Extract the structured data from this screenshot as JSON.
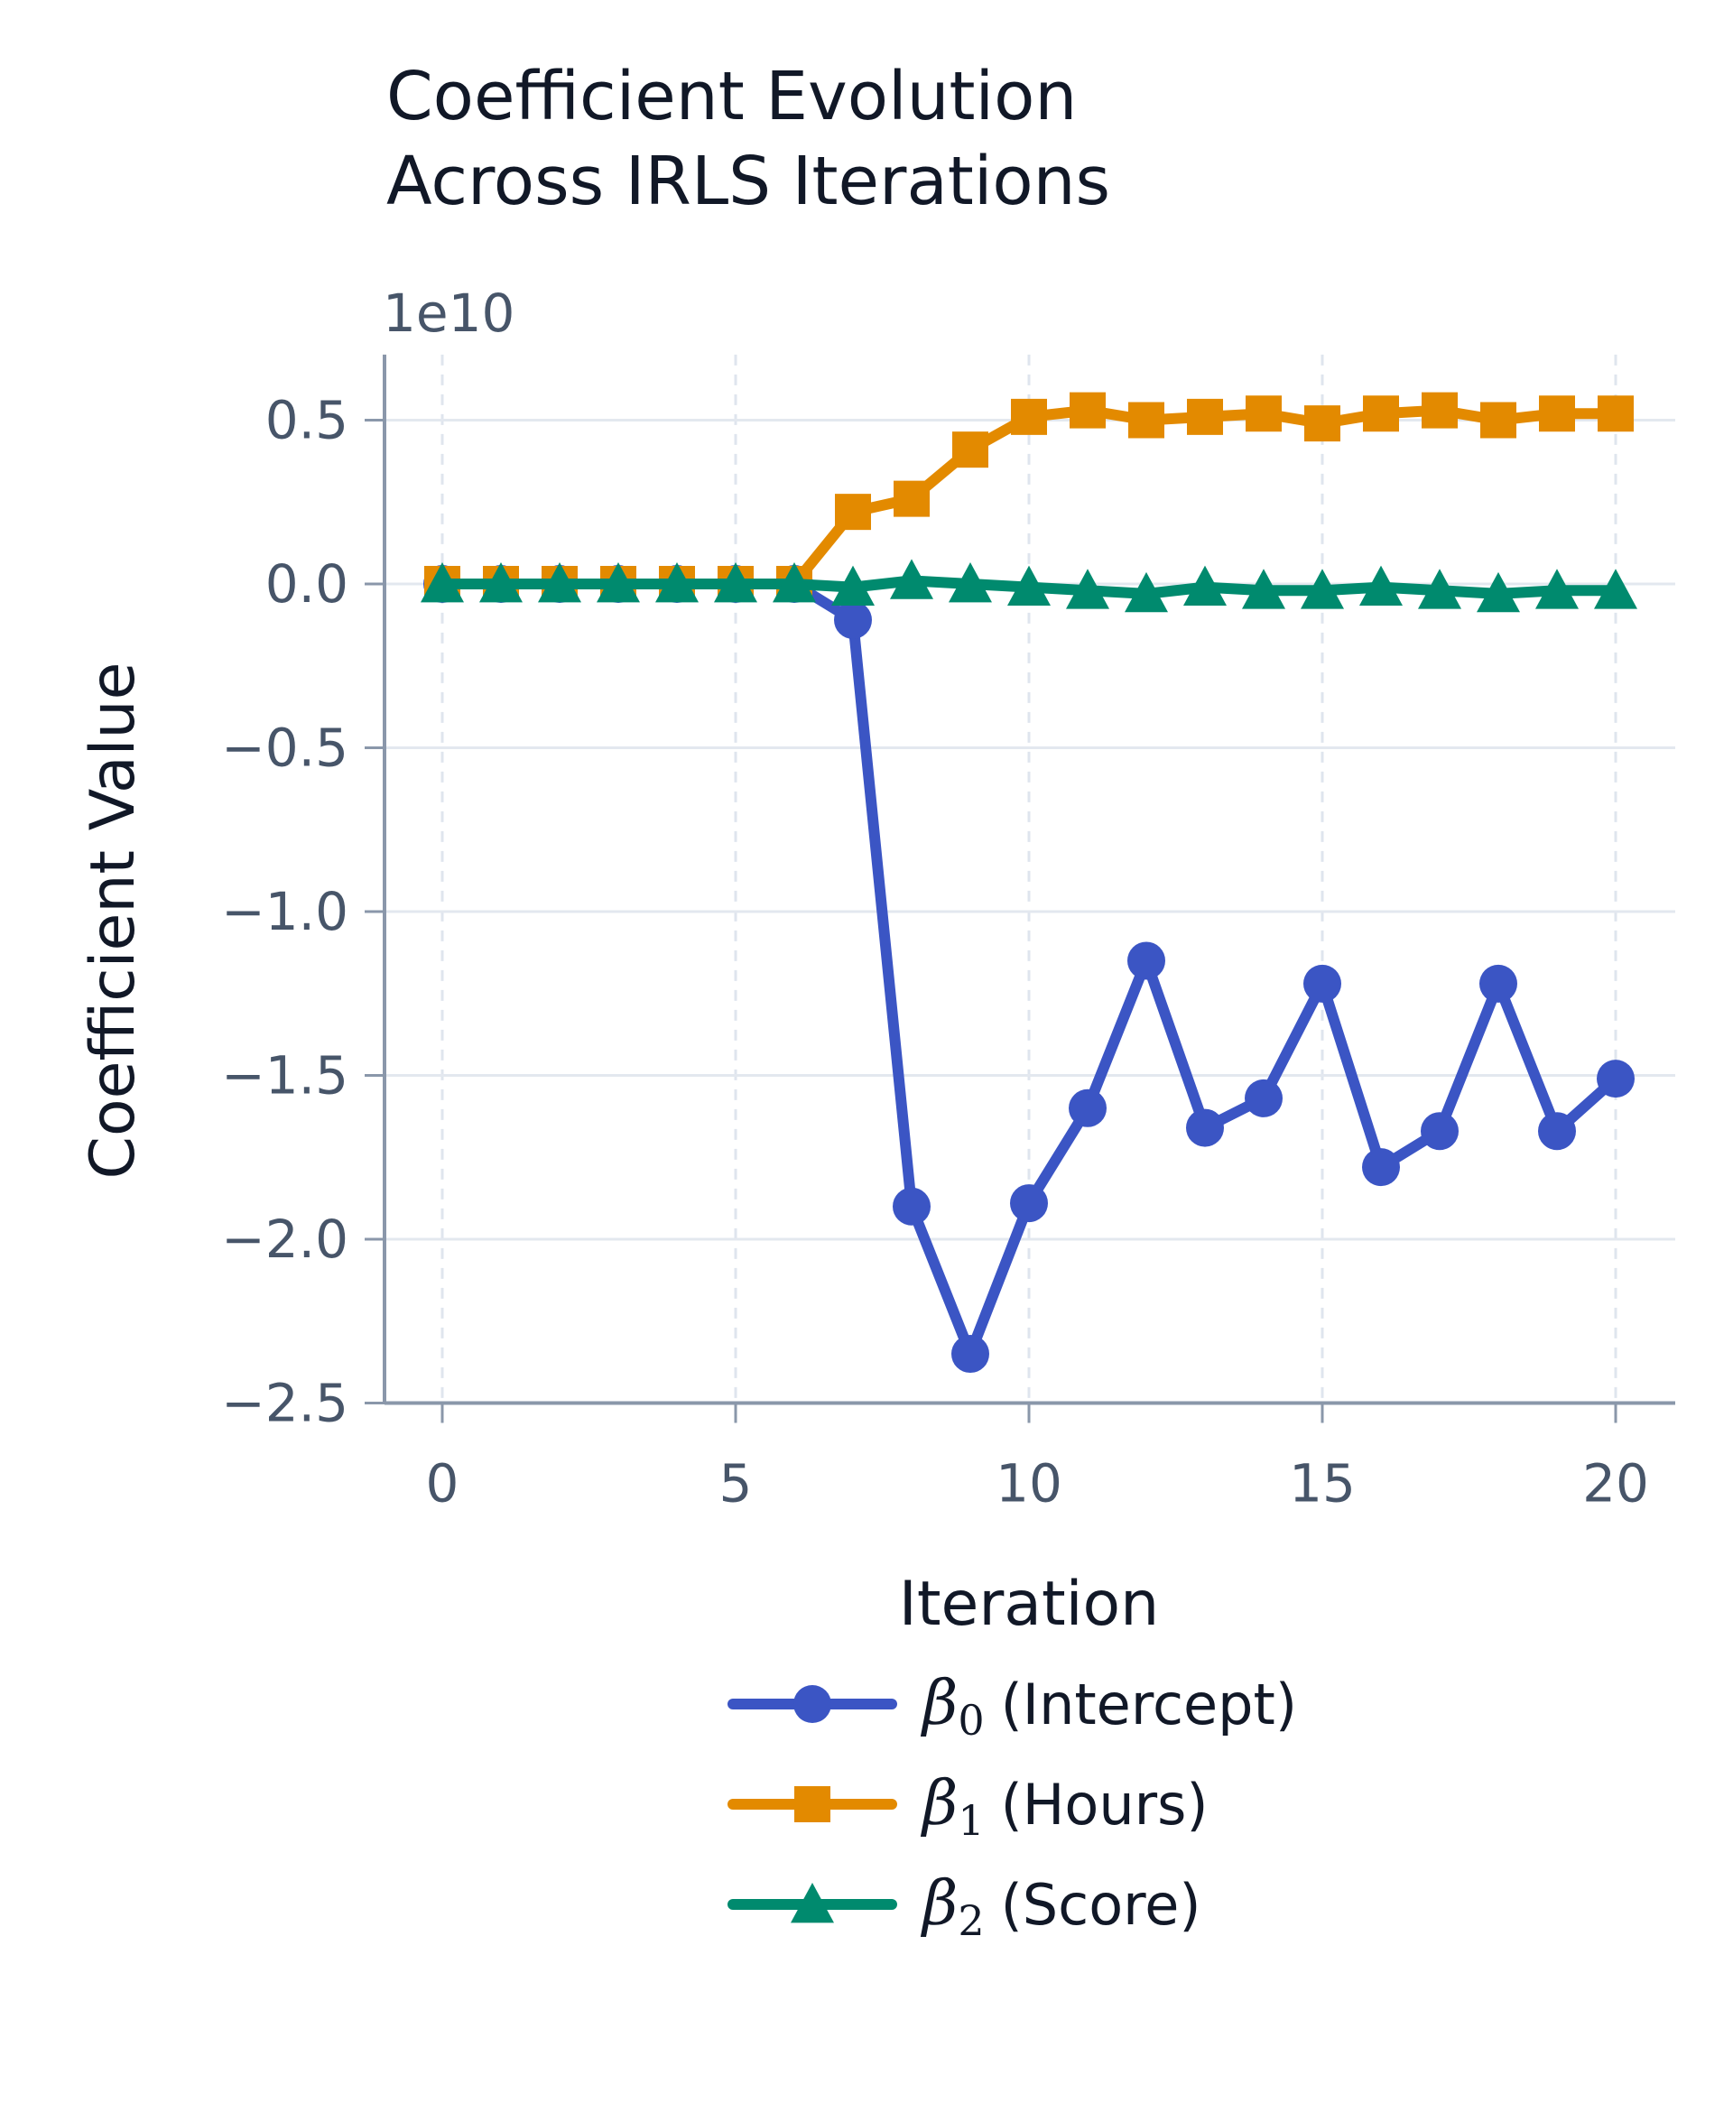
{
  "chart_data": {
    "type": "line",
    "title_lines": [
      "Coefficient Evolution",
      "Across IRLS Iterations"
    ],
    "offset_label": "1e10",
    "xlabel": "Iteration",
    "ylabel": "Coefficient Value",
    "xlim": [
      -1,
      21
    ],
    "ylim": [
      -2.5,
      0.7
    ],
    "x_ticks": [
      0,
      5,
      10,
      15,
      20
    ],
    "x_tick_labels": [
      "0",
      "5",
      "10",
      "15",
      "20"
    ],
    "y_ticks": [
      0.5,
      0.0,
      -0.5,
      -1.0,
      -1.5,
      -2.0,
      -2.5
    ],
    "y_tick_labels": [
      "0.5",
      "0.0",
      "−0.5",
      "−1.0",
      "−1.5",
      "−2.0",
      "−2.5"
    ],
    "y_unit_multiplier": 10000000000,
    "x_grid": "dashed",
    "y_grid": "solid",
    "legend_position": "bottom",
    "x": [
      0,
      1,
      2,
      3,
      4,
      5,
      6,
      7,
      8,
      9,
      10,
      11,
      12,
      13,
      14,
      15,
      16,
      17,
      18,
      19,
      20
    ],
    "series": [
      {
        "symbol": "β",
        "subscript": "0",
        "name": "(Intercept)",
        "color": "#3b55c4",
        "marker": "circle",
        "values": [
          0.0,
          0.0,
          0.0,
          0.0,
          0.0,
          0.0,
          0.0,
          -0.11,
          -1.9,
          -2.35,
          -1.89,
          -1.6,
          -1.15,
          -1.66,
          -1.57,
          -1.22,
          -1.78,
          -1.67,
          -1.22,
          -1.67,
          -1.51
        ]
      },
      {
        "symbol": "β",
        "subscript": "1",
        "name": "(Hours)",
        "color": "#e38a00",
        "marker": "square",
        "values": [
          0.0,
          0.0,
          0.0,
          0.0,
          0.0,
          0.0,
          0.0,
          0.22,
          0.26,
          0.41,
          0.51,
          0.53,
          0.5,
          0.51,
          0.52,
          0.49,
          0.52,
          0.53,
          0.5,
          0.52,
          0.52
        ]
      },
      {
        "symbol": "β",
        "subscript": "2",
        "name": "(Score)",
        "color": "#008a6e",
        "marker": "triangle",
        "values": [
          0.0,
          0.0,
          0.0,
          0.0,
          0.0,
          0.0,
          0.0,
          -0.01,
          0.01,
          0.0,
          -0.01,
          -0.02,
          -0.03,
          -0.01,
          -0.02,
          -0.02,
          -0.01,
          -0.02,
          -0.03,
          -0.02,
          -0.02
        ]
      }
    ]
  }
}
